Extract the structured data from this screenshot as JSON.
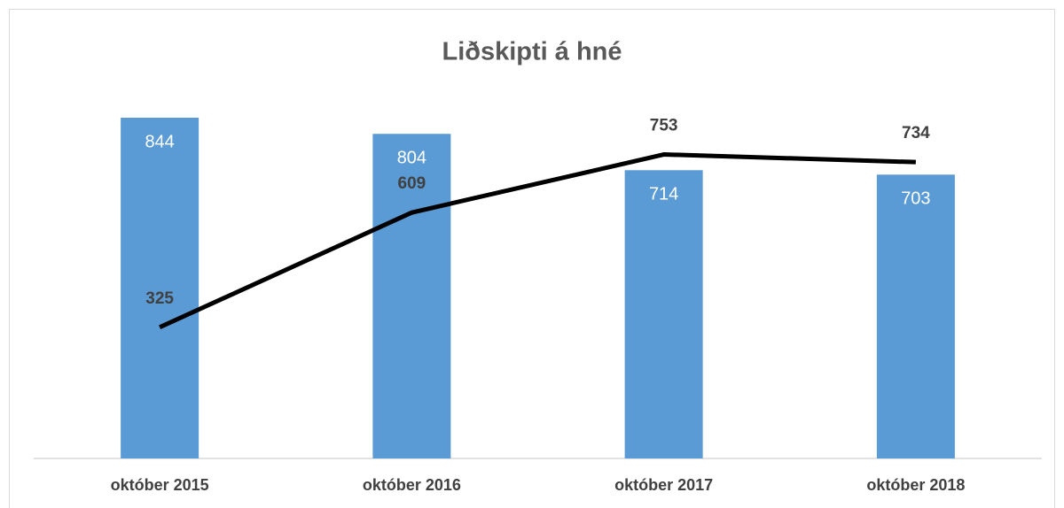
{
  "chart_data": {
    "type": "bar",
    "title": "Liðskipti á hné",
    "categories": [
      "október 2015",
      "október 2016",
      "október 2017",
      "október 2018"
    ],
    "series": [
      {
        "type": "bar",
        "color": "#5b9bd5",
        "values": [
          844,
          804,
          714,
          703
        ]
      },
      {
        "type": "line",
        "color": "#000000",
        "values": [
          325,
          609,
          753,
          734
        ]
      }
    ]
  }
}
